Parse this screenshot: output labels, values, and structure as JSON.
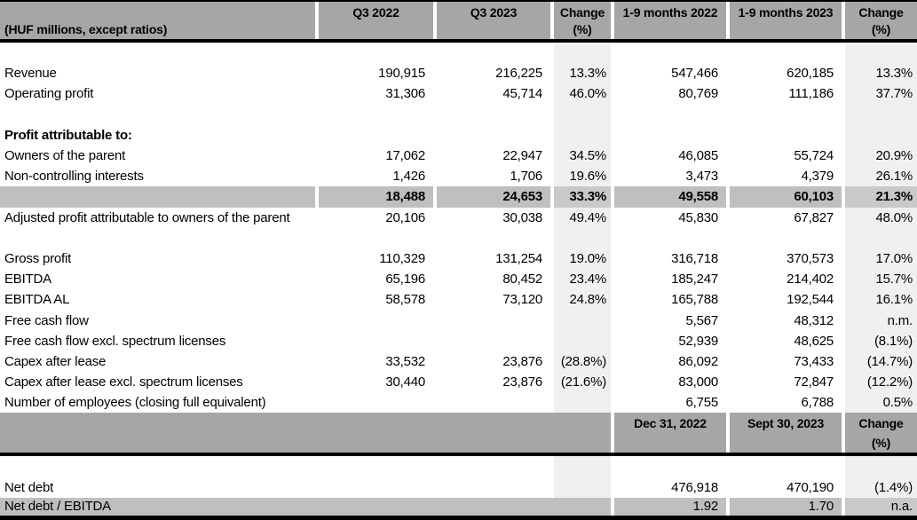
{
  "table": {
    "unit_label": "(HUF millions, except ratios)",
    "colors": {
      "header_gray": "#a6a6a6",
      "subtotal_gray": "#bfbfbf",
      "subtotal_change_gray": "#c9c9c9",
      "change_column_gray": "#f0f0f0",
      "rule_black": "#000000"
    },
    "header_quarter": {
      "q3_2022": "Q3 2022",
      "q3_2023": "Q3 2023",
      "change_line1": "Change",
      "change_line2": "(%)",
      "m9_2022": "1-9 months 2022",
      "m9_2023": "1-9 months 2023"
    },
    "rows": [
      {
        "style": "empty",
        "label": "",
        "q3_2022": "",
        "q3_2023": "",
        "change_q": "",
        "m9_2022": "",
        "m9_2023": "",
        "change_9m": ""
      },
      {
        "style": "data",
        "label": "Revenue",
        "q3_2022": "190,915",
        "q3_2023": "216,225",
        "change_q": "13.3%",
        "m9_2022": "547,466",
        "m9_2023": "620,185",
        "change_9m": "13.3%"
      },
      {
        "style": "data",
        "label": "Operating profit",
        "q3_2022": "31,306",
        "q3_2023": "45,714",
        "change_q": "46.0%",
        "m9_2022": "80,769",
        "m9_2023": "111,186",
        "change_9m": "37.7%"
      },
      {
        "style": "empty",
        "label": "",
        "q3_2022": "",
        "q3_2023": "",
        "change_q": "",
        "m9_2022": "",
        "m9_2023": "",
        "change_9m": ""
      },
      {
        "style": "section",
        "label": "Profit attributable to:",
        "q3_2022": "",
        "q3_2023": "",
        "change_q": "",
        "m9_2022": "",
        "m9_2023": "",
        "change_9m": ""
      },
      {
        "style": "data",
        "label": "Owners of the parent",
        "q3_2022": "17,062",
        "q3_2023": "22,947",
        "change_q": "34.5%",
        "m9_2022": "46,085",
        "m9_2023": "55,724",
        "change_9m": "20.9%"
      },
      {
        "style": "data",
        "label": "Non-controlling interests",
        "q3_2022": "1,426",
        "q3_2023": "1,706",
        "change_q": "19.6%",
        "m9_2022": "3,473",
        "m9_2023": "4,379",
        "change_9m": "26.1%"
      },
      {
        "style": "total",
        "label": "",
        "q3_2022": "18,488",
        "q3_2023": "24,653",
        "change_q": "33.3%",
        "m9_2022": "49,558",
        "m9_2023": "60,103",
        "change_9m": "21.3%"
      },
      {
        "style": "data",
        "label": "Adjusted profit attributable to owners of the parent",
        "q3_2022": "20,106",
        "q3_2023": "30,038",
        "change_q": "49.4%",
        "m9_2022": "45,830",
        "m9_2023": "67,827",
        "change_9m": "48.0%"
      },
      {
        "style": "empty",
        "label": "",
        "q3_2022": "",
        "q3_2023": "",
        "change_q": "",
        "m9_2022": "",
        "m9_2023": "",
        "change_9m": ""
      },
      {
        "style": "data",
        "label": "Gross profit",
        "q3_2022": "110,329",
        "q3_2023": "131,254",
        "change_q": "19.0%",
        "m9_2022": "316,718",
        "m9_2023": "370,573",
        "change_9m": "17.0%"
      },
      {
        "style": "data",
        "label": "EBITDA",
        "q3_2022": "65,196",
        "q3_2023": "80,452",
        "change_q": "23.4%",
        "m9_2022": "185,247",
        "m9_2023": "214,402",
        "change_9m": "15.7%"
      },
      {
        "style": "data",
        "label": "EBITDA AL",
        "q3_2022": "58,578",
        "q3_2023": "73,120",
        "change_q": "24.8%",
        "m9_2022": "165,788",
        "m9_2023": "192,544",
        "change_9m": "16.1%"
      },
      {
        "style": "data",
        "label": "Free cash flow",
        "q3_2022": "",
        "q3_2023": "",
        "change_q": "",
        "m9_2022": "5,567",
        "m9_2023": "48,312",
        "change_9m": "n.m."
      },
      {
        "style": "data",
        "label": "Free cash flow excl. spectrum licenses",
        "q3_2022": "",
        "q3_2023": "",
        "change_q": "",
        "m9_2022": "52,939",
        "m9_2023": "48,625",
        "change_9m": "(8.1%)"
      },
      {
        "style": "data",
        "label": "Capex after lease",
        "q3_2022": "33,532",
        "q3_2023": "23,876",
        "change_q": "(28.8%)",
        "m9_2022": "86,092",
        "m9_2023": "73,433",
        "change_9m": "(14.7%)"
      },
      {
        "style": "data",
        "label": "Capex after lease excl. spectrum licenses",
        "q3_2022": "30,440",
        "q3_2023": "23,876",
        "change_q": "(21.6%)",
        "m9_2022": "83,000",
        "m9_2023": "72,847",
        "change_9m": "(12.2%)"
      },
      {
        "style": "data",
        "label": "Number of employees (closing full equivalent)",
        "q3_2022": "",
        "q3_2023": "",
        "change_q": "",
        "m9_2022": "6,755",
        "m9_2023": "6,788",
        "change_9m": "0.5%"
      }
    ],
    "header_balance": {
      "dec_2022": "Dec 31, 2022",
      "sept_2023": "Sept 30, 2023",
      "change_line1": "Change",
      "change_line2": "(%)"
    },
    "balance_rows": [
      {
        "style": "empty",
        "label": "",
        "dec_2022": "",
        "sept_2023": "",
        "change": ""
      },
      {
        "style": "data",
        "label": "Net debt",
        "dec_2022": "476,918",
        "sept_2023": "470,190",
        "change": "(1.4%)"
      },
      {
        "style": "ratio",
        "label": "Net debt / EBITDA",
        "dec_2022": "1.92",
        "sept_2023": "1.70",
        "change": "n.a."
      }
    ]
  }
}
